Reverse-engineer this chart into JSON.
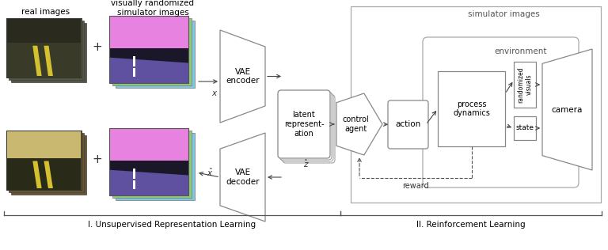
{
  "bg_color": "#ffffff",
  "section1_label": "I. Unsupervised Representation Learning",
  "section2_label": "II. Reinforcement Learning",
  "real_images_label": "real images",
  "sim_images_label": "visually randomized\nsimulator images",
  "sim_images_label2": "simulator images",
  "environment_label": "environment",
  "vae_encoder_label": "VAE\nencoder",
  "vae_decoder_label": "VAE\ndecoder",
  "latent_label": "latent\nrepresent-\nation",
  "control_agent_label": "control\nagent",
  "action_label": "action",
  "process_dynamics_label": "process\ndynamics",
  "randomized_visuals_label": "randomized\nvisuals",
  "state_label": "state",
  "camera_label": "camera",
  "reward_label": "reward",
  "x_label": "x",
  "x_hat_label": "$\\hat{x}$",
  "z_hat_label": "$\\hat{z}$",
  "stack_colors_sim": [
    "#7ec8e3",
    "#90c978",
    "#da8fda"
  ],
  "pink_color": "#e882e0",
  "road_color": "#1e1e2e",
  "road_purple": "#7060a0",
  "gray_line": "#888888",
  "arrow_color": "#444444"
}
